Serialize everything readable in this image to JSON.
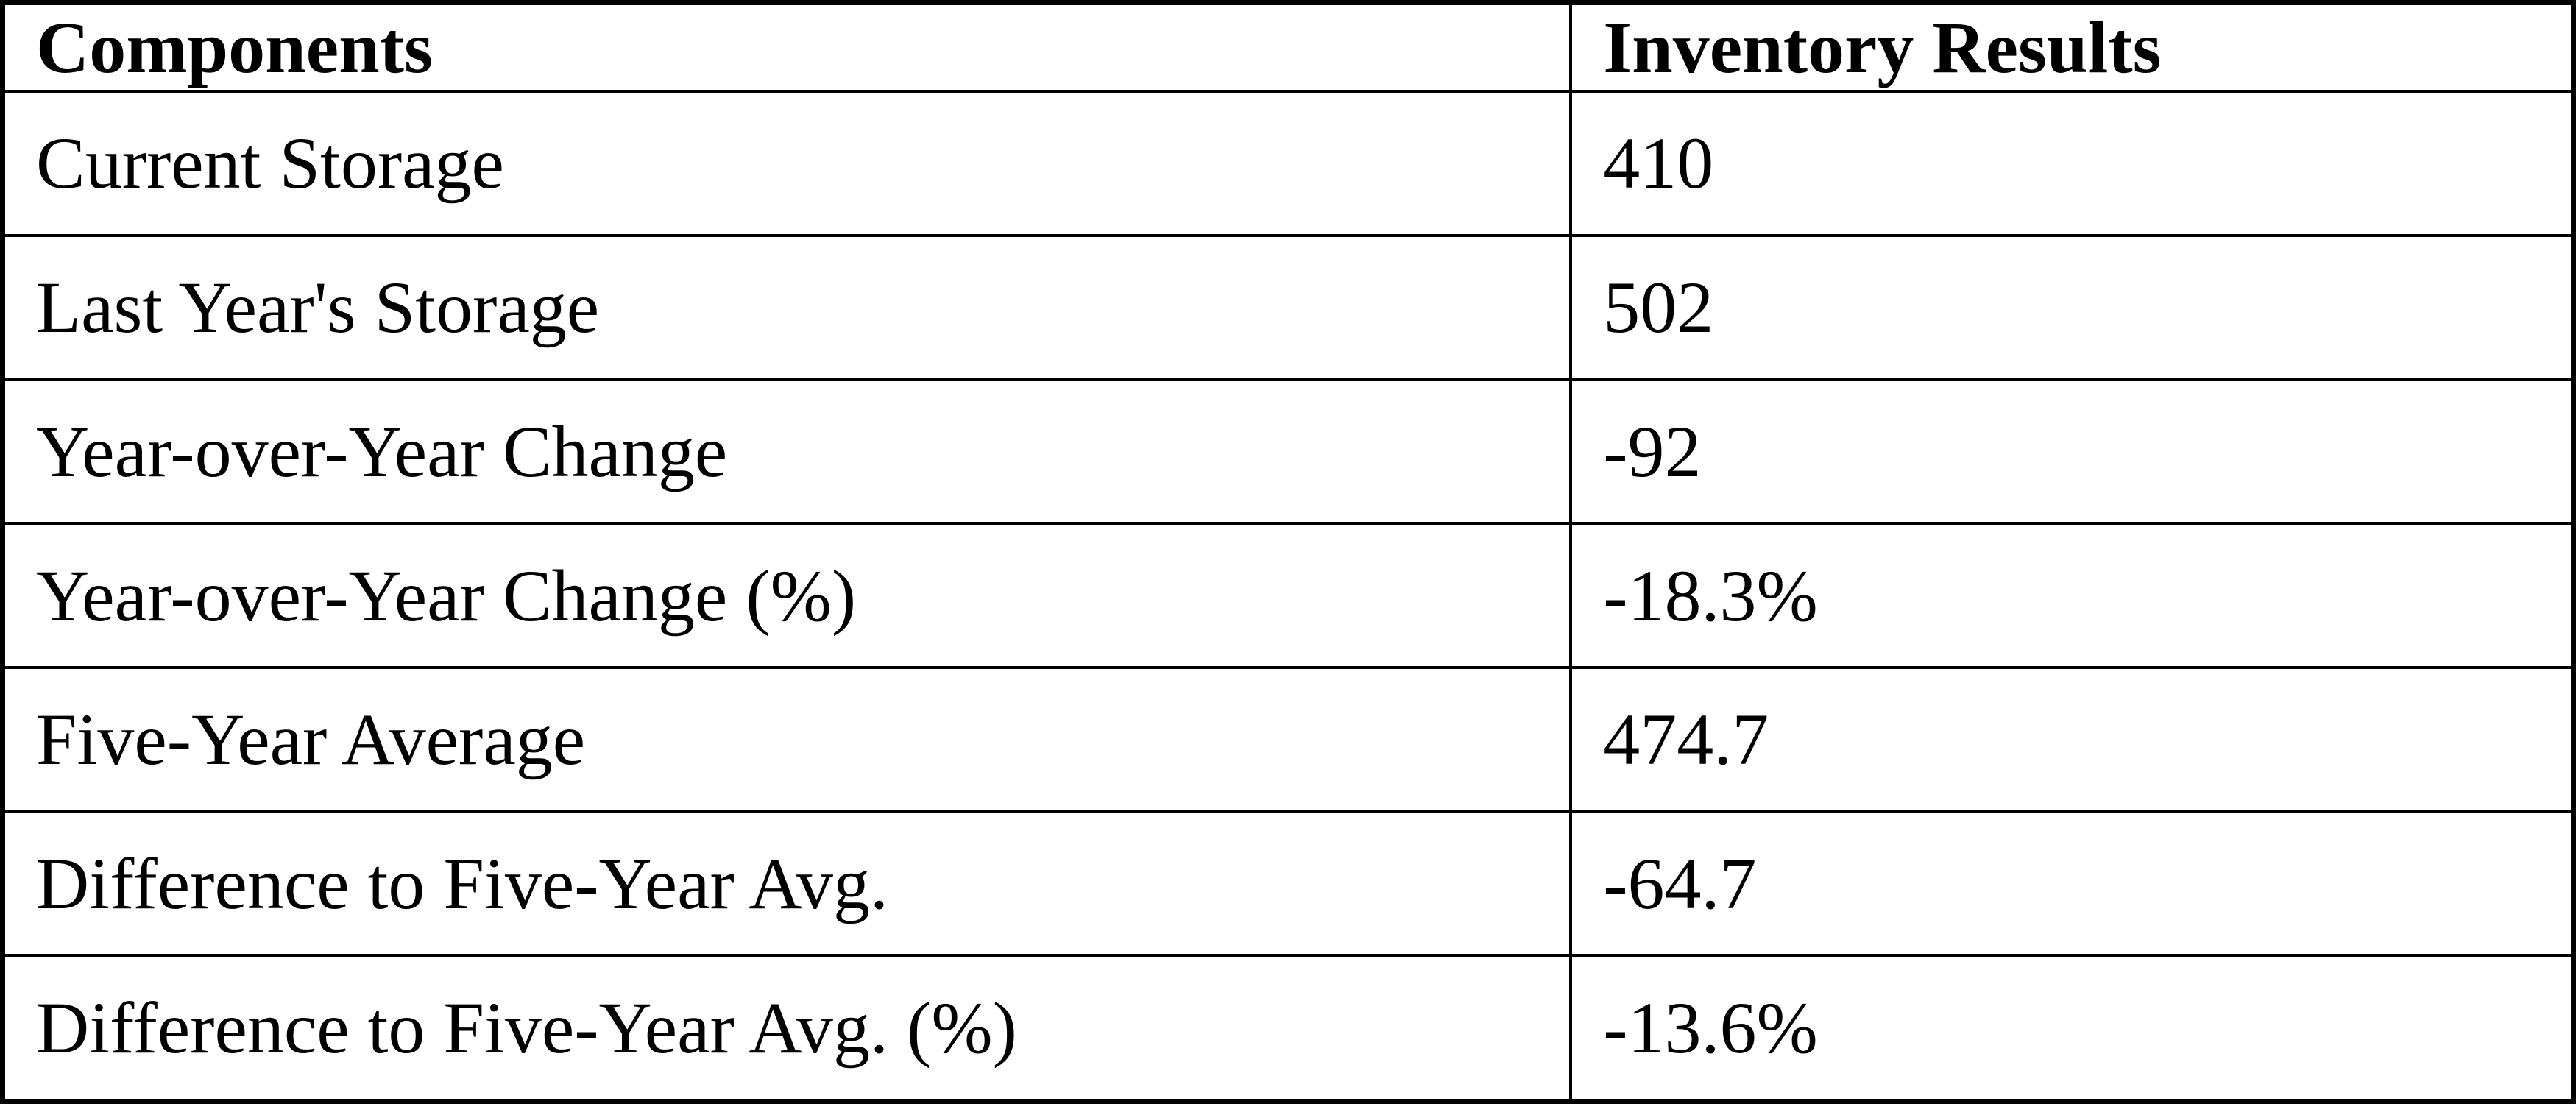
{
  "table": {
    "columns": [
      "Components",
      "Inventory Results"
    ],
    "rows": [
      {
        "component": "Current Storage",
        "value": "410"
      },
      {
        "component": "Last Year's Storage",
        "value": "502"
      },
      {
        "component": "Year-over-Year Change",
        "value": "-92"
      },
      {
        "component": "Year-over-Year Change (%)",
        "value": "-18.3%"
      },
      {
        "component": "Five-Year Average",
        "value": "474.7"
      },
      {
        "component": "Difference to Five-Year Avg.",
        "value": "-64.7"
      },
      {
        "component": "Difference to Five-Year Avg. (%)",
        "value": "-13.6%"
      }
    ]
  },
  "chart_data": {
    "type": "table",
    "title": "",
    "columns": [
      "Components",
      "Inventory Results"
    ],
    "rows": [
      [
        "Current Storage",
        410
      ],
      [
        "Last Year's Storage",
        502
      ],
      [
        "Year-over-Year Change",
        -92
      ],
      [
        "Year-over-Year Change (%)",
        "-18.3%"
      ],
      [
        "Five-Year Average",
        474.7
      ],
      [
        "Difference to Five-Year Avg.",
        -64.7
      ],
      [
        "Difference to Five-Year Avg. (%)",
        "-13.6%"
      ]
    ]
  },
  "colors": {
    "border": "#000000",
    "background": "#ffffff",
    "text": "#000000"
  }
}
